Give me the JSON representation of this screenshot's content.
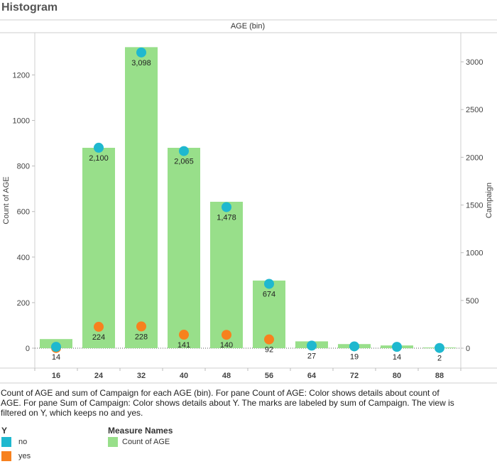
{
  "page": {
    "title": "Histogram",
    "caption": "Count of AGE and sum of Campaign for each AGE (bin).  For pane Count of AGE:  Color shows details about count of AGE.  For pane Sum of Campaign:  Color shows details about Y.  The marks are labeled by sum of Campaign. The view is filtered on Y, which keeps no and yes."
  },
  "legend_y": {
    "title": "Y",
    "items": [
      {
        "label": "no",
        "color": "#1fb8cf"
      },
      {
        "label": "yes",
        "color": "#f7811e"
      }
    ]
  },
  "legend_measure": {
    "title": "Measure Names",
    "items": [
      {
        "label": "Count of AGE",
        "color": "#98df8a"
      }
    ]
  },
  "chart_data": {
    "type": "bar",
    "title": "AGE (bin)",
    "xlabel": "",
    "ylabel": "Count of AGE",
    "y2label": "Campaign",
    "categories": [
      "16",
      "24",
      "32",
      "40",
      "48",
      "56",
      "64",
      "72",
      "80",
      "88"
    ],
    "ylim": [
      0,
      1320
    ],
    "y_ticks": [
      0,
      200,
      400,
      600,
      800,
      1000,
      1200
    ],
    "y2lim": [
      0,
      3225
    ],
    "y2_ticks": [
      0,
      500,
      1000,
      1500,
      2000,
      2500,
      3000
    ],
    "bars": {
      "name": "Count of AGE",
      "color": "#98df8a",
      "values": [
        40,
        880,
        1322,
        880,
        643,
        297,
        30,
        18,
        12,
        3
      ]
    },
    "points": [
      {
        "name": "no",
        "color": "#1fb8cf",
        "values": [
          14,
          2100,
          3098,
          2065,
          1478,
          674,
          27,
          19,
          14,
          2
        ]
      },
      {
        "name": "yes",
        "color": "#f7811e",
        "values": [
          2,
          224,
          228,
          141,
          140,
          92,
          null,
          null,
          null,
          null
        ]
      }
    ],
    "point_labels": [
      "14",
      "2,100",
      "3,098",
      "2,065",
      "1,478",
      "674",
      "27",
      "19",
      "14",
      "2"
    ],
    "label_extra": [
      "",
      "224",
      "228",
      "141",
      "140",
      "92",
      "",
      "",
      "",
      ""
    ],
    "grid": false,
    "legend": "bottom-left"
  }
}
